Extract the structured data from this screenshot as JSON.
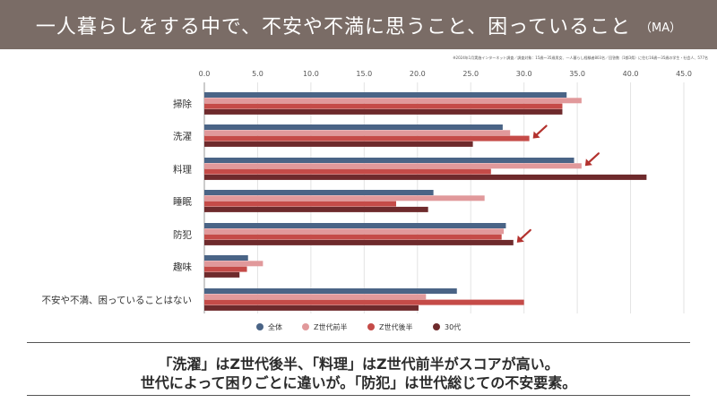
{
  "header": {
    "title": "一人暮らしをする中で、不安や不満に思うこと、困っていること",
    "suffix": "（MA）"
  },
  "source_note": "※2024年1月実施インターネット調査／調査対象：15歳～35歳男女、一人暮らし経験者803名／回答数（1都3県）に住む16歳～35歳の学生・社会人、577名",
  "conclusion": {
    "line1": "「洗濯」はZ世代後半、「料理」はZ世代前半がスコアが高い。",
    "line2": "世代によって困りごとに違いが。「防犯」は世代総じての不安要素。"
  },
  "chart_data": {
    "type": "bar",
    "orientation": "horizontal",
    "categories": [
      "掃除",
      "洗濯",
      "料理",
      "睡眠",
      "防犯",
      "趣味",
      "不安や不満、困っていることはない"
    ],
    "xlim": [
      0,
      45
    ],
    "xticks": [
      "0.0",
      "5.0",
      "10.0",
      "15.0",
      "20.0",
      "25.0",
      "30.0",
      "35.0",
      "40.0",
      "45.0"
    ],
    "series": [
      {
        "name": "全体",
        "color": "#4a6486",
        "values": [
          34.0,
          28.0,
          34.7,
          21.5,
          28.3,
          4.1,
          23.7
        ]
      },
      {
        "name": "Z世代前半",
        "color": "#e1999b",
        "values": [
          35.4,
          28.7,
          35.4,
          26.3,
          28.1,
          5.5,
          20.8
        ]
      },
      {
        "name": "Z世代後半",
        "color": "#c54b48",
        "values": [
          33.6,
          30.5,
          26.9,
          18.0,
          27.9,
          4.0,
          30.0
        ]
      },
      {
        "name": "30代",
        "color": "#6e2a2c",
        "values": [
          33.6,
          25.2,
          41.5,
          21.0,
          29.0,
          3.3,
          20.1
        ]
      }
    ],
    "annotations": [
      {
        "category": "洗濯",
        "series": "Z世代後半",
        "marker": "arrow"
      },
      {
        "category": "料理",
        "series": "Z世代前半",
        "marker": "arrow"
      },
      {
        "category": "防犯",
        "series": "30代",
        "marker": "arrow"
      }
    ],
    "accent_arrow_color": "#b3322e",
    "grid": true,
    "legend": "bottom"
  }
}
